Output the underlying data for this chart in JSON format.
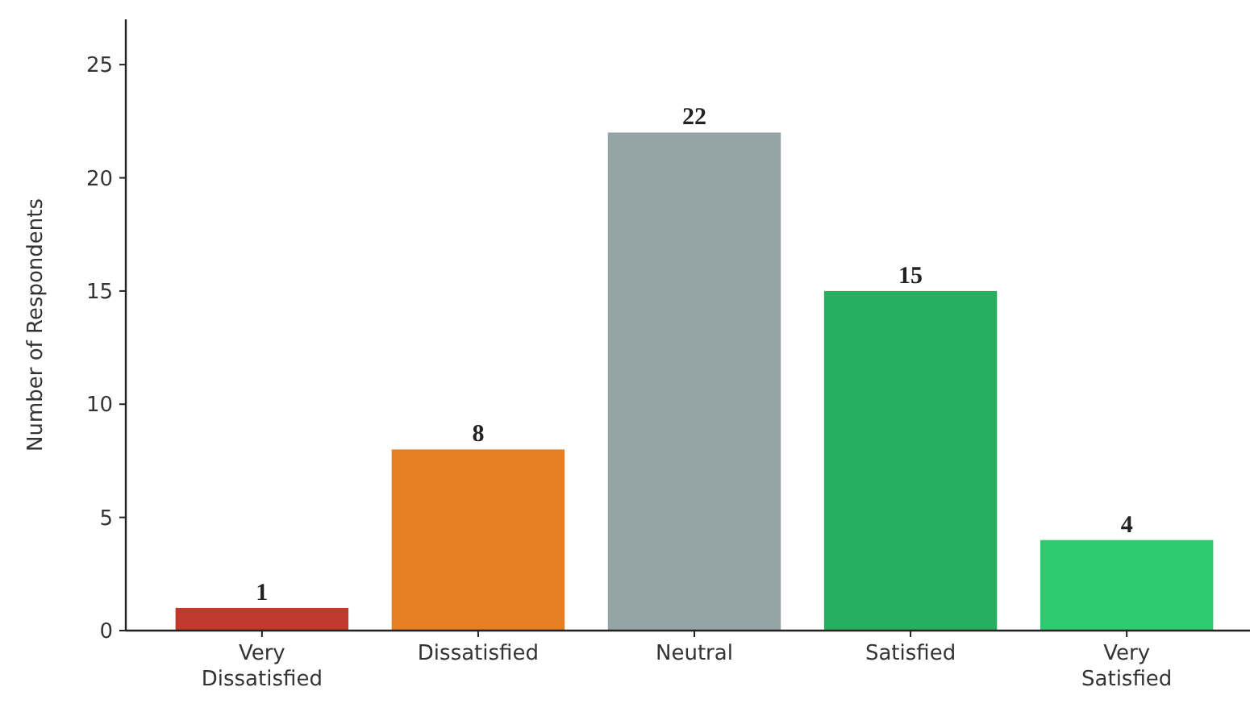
{
  "chart_data": {
    "type": "bar",
    "ylabel": "Number of Respondents",
    "categories": [
      "Very Dissatisfied",
      "Dissatisfied",
      "Neutral",
      "Satisfied",
      "Very Satisfied"
    ],
    "values": [
      1,
      8,
      22,
      15,
      4
    ],
    "colors": [
      "#c0392b",
      "#e67e22",
      "#95a5a6",
      "#27ae60",
      "#2ecc71"
    ],
    "ylim": [
      0,
      27
    ],
    "yticks": [
      0,
      5,
      10,
      15,
      20,
      25
    ],
    "data_labels": true,
    "grid": false
  }
}
